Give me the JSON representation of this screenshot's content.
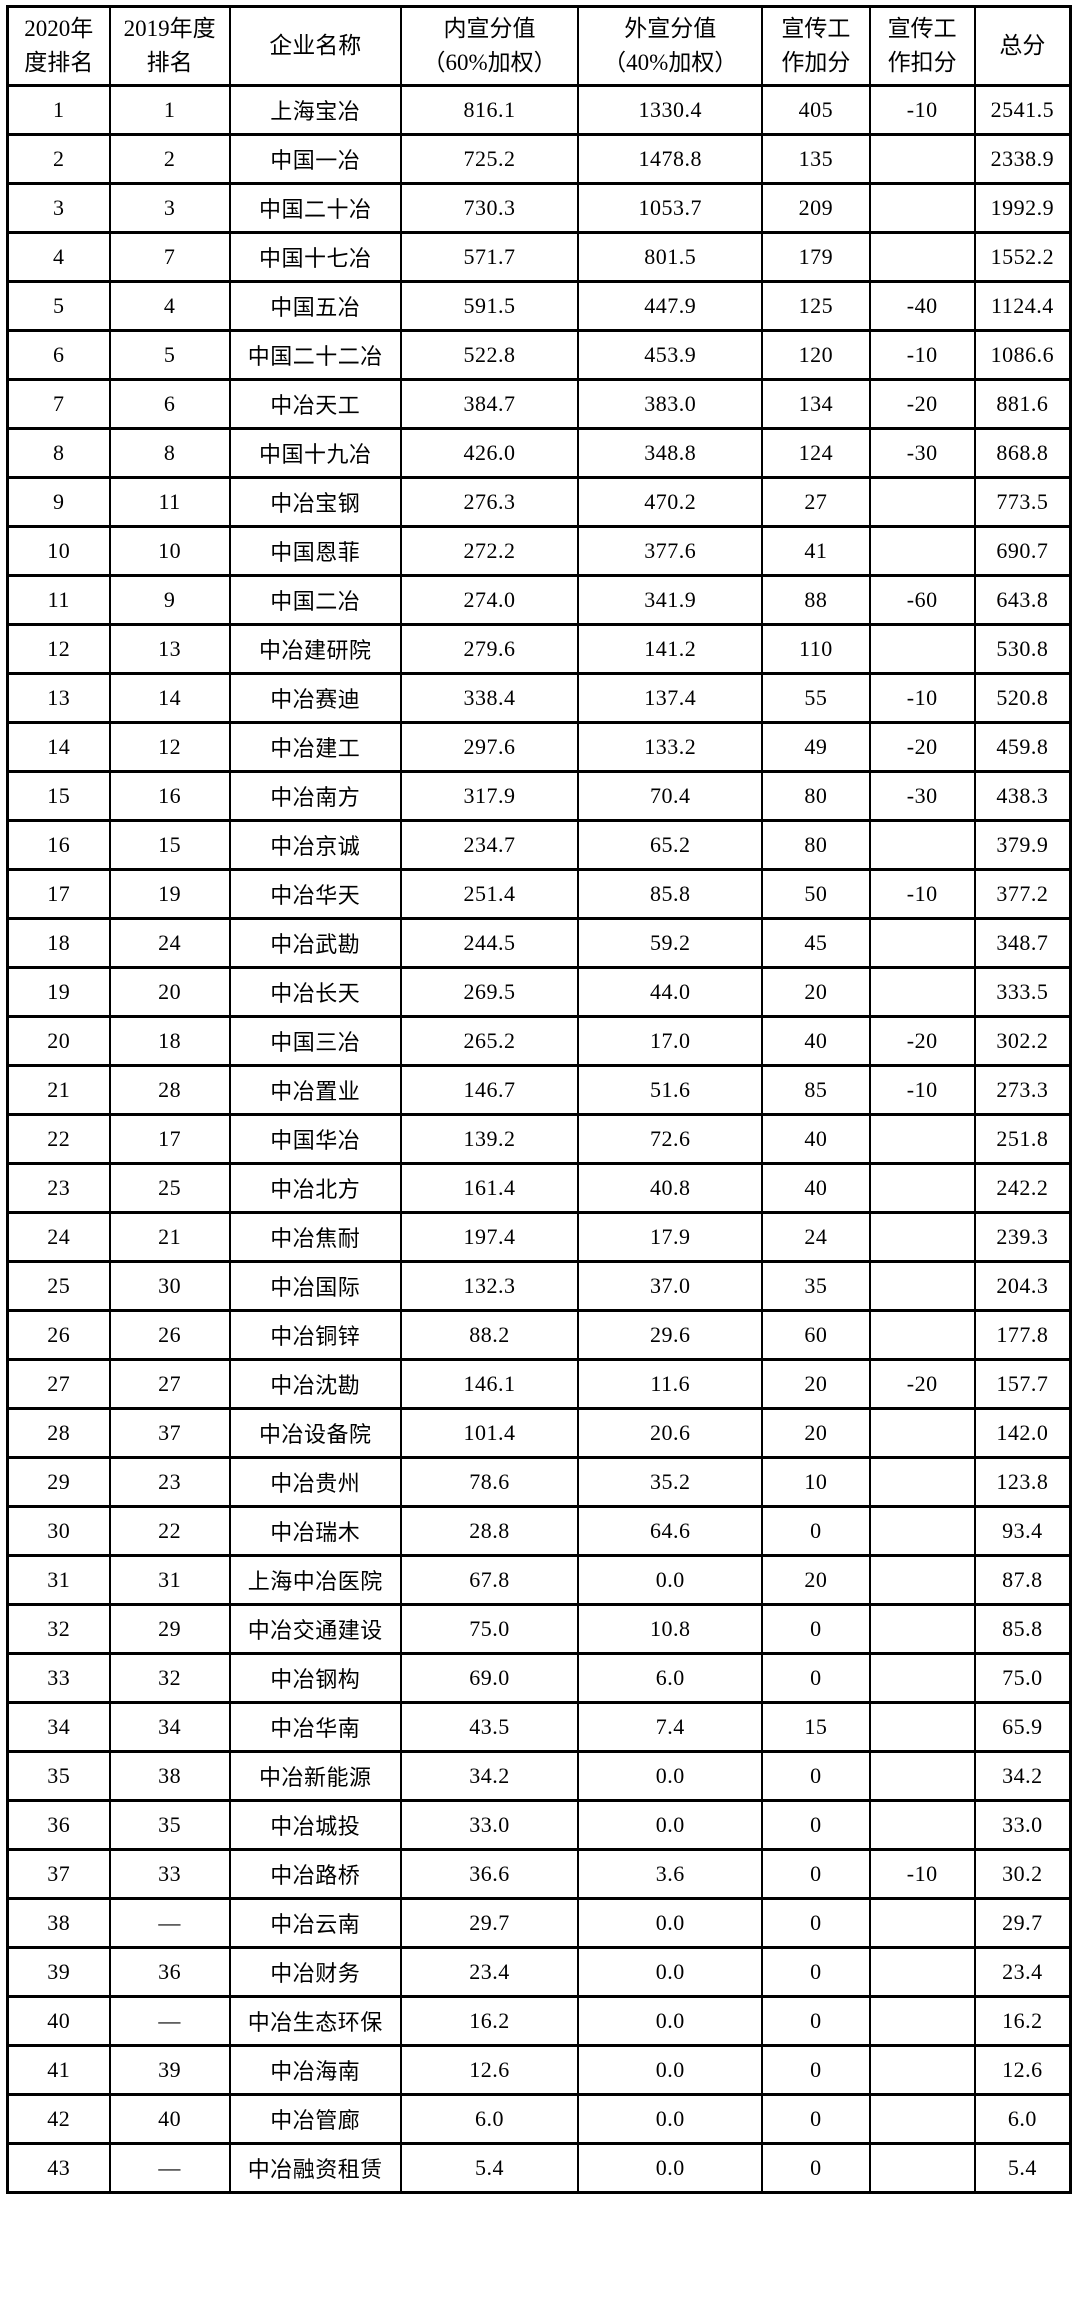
{
  "table": {
    "columns": [
      {
        "key": "rank_2020",
        "label": "2020年\n度排名"
      },
      {
        "key": "rank_2019",
        "label": "2019年度\n排名"
      },
      {
        "key": "company_name",
        "label": "企业名称"
      },
      {
        "key": "internal_score",
        "label": "内宣分值\n（60%加权）"
      },
      {
        "key": "external_score",
        "label": "外宣分值\n（40%加权）"
      },
      {
        "key": "bonus_points",
        "label": "宣传工\n作加分"
      },
      {
        "key": "deduction_points",
        "label": "宣传工\n作扣分"
      },
      {
        "key": "total_score",
        "label": "总分"
      }
    ],
    "rows": [
      [
        "1",
        "1",
        "上海宝冶",
        "816.1",
        "1330.4",
        "405",
        "-10",
        "2541.5"
      ],
      [
        "2",
        "2",
        "中国一冶",
        "725.2",
        "1478.8",
        "135",
        "",
        "2338.9"
      ],
      [
        "3",
        "3",
        "中国二十冶",
        "730.3",
        "1053.7",
        "209",
        "",
        "1992.9"
      ],
      [
        "4",
        "7",
        "中国十七冶",
        "571.7",
        "801.5",
        "179",
        "",
        "1552.2"
      ],
      [
        "5",
        "4",
        "中国五冶",
        "591.5",
        "447.9",
        "125",
        "-40",
        "1124.4"
      ],
      [
        "6",
        "5",
        "中国二十二冶",
        "522.8",
        "453.9",
        "120",
        "-10",
        "1086.6"
      ],
      [
        "7",
        "6",
        "中冶天工",
        "384.7",
        "383.0",
        "134",
        "-20",
        "881.6"
      ],
      [
        "8",
        "8",
        "中国十九冶",
        "426.0",
        "348.8",
        "124",
        "-30",
        "868.8"
      ],
      [
        "9",
        "11",
        "中冶宝钢",
        "276.3",
        "470.2",
        "27",
        "",
        "773.5"
      ],
      [
        "10",
        "10",
        "中国恩菲",
        "272.2",
        "377.6",
        "41",
        "",
        "690.7"
      ],
      [
        "11",
        "9",
        "中国二冶",
        "274.0",
        "341.9",
        "88",
        "-60",
        "643.8"
      ],
      [
        "12",
        "13",
        "中冶建研院",
        "279.6",
        "141.2",
        "110",
        "",
        "530.8"
      ],
      [
        "13",
        "14",
        "中冶赛迪",
        "338.4",
        "137.4",
        "55",
        "-10",
        "520.8"
      ],
      [
        "14",
        "12",
        "中冶建工",
        "297.6",
        "133.2",
        "49",
        "-20",
        "459.8"
      ],
      [
        "15",
        "16",
        "中冶南方",
        "317.9",
        "70.4",
        "80",
        "-30",
        "438.3"
      ],
      [
        "16",
        "15",
        "中冶京诚",
        "234.7",
        "65.2",
        "80",
        "",
        "379.9"
      ],
      [
        "17",
        "19",
        "中冶华天",
        "251.4",
        "85.8",
        "50",
        "-10",
        "377.2"
      ],
      [
        "18",
        "24",
        "中冶武勘",
        "244.5",
        "59.2",
        "45",
        "",
        "348.7"
      ],
      [
        "19",
        "20",
        "中冶长天",
        "269.5",
        "44.0",
        "20",
        "",
        "333.5"
      ],
      [
        "20",
        "18",
        "中国三冶",
        "265.2",
        "17.0",
        "40",
        "-20",
        "302.2"
      ],
      [
        "21",
        "28",
        "中冶置业",
        "146.7",
        "51.6",
        "85",
        "-10",
        "273.3"
      ],
      [
        "22",
        "17",
        "中国华冶",
        "139.2",
        "72.6",
        "40",
        "",
        "251.8"
      ],
      [
        "23",
        "25",
        "中冶北方",
        "161.4",
        "40.8",
        "40",
        "",
        "242.2"
      ],
      [
        "24",
        "21",
        "中冶焦耐",
        "197.4",
        "17.9",
        "24",
        "",
        "239.3"
      ],
      [
        "25",
        "30",
        "中冶国际",
        "132.3",
        "37.0",
        "35",
        "",
        "204.3"
      ],
      [
        "26",
        "26",
        "中冶铜锌",
        "88.2",
        "29.6",
        "60",
        "",
        "177.8"
      ],
      [
        "27",
        "27",
        "中冶沈勘",
        "146.1",
        "11.6",
        "20",
        "-20",
        "157.7"
      ],
      [
        "28",
        "37",
        "中冶设备院",
        "101.4",
        "20.6",
        "20",
        "",
        "142.0"
      ],
      [
        "29",
        "23",
        "中冶贵州",
        "78.6",
        "35.2",
        "10",
        "",
        "123.8"
      ],
      [
        "30",
        "22",
        "中冶瑞木",
        "28.8",
        "64.6",
        "0",
        "",
        "93.4"
      ],
      [
        "31",
        "31",
        "上海中冶医院",
        "67.8",
        "0.0",
        "20",
        "",
        "87.8"
      ],
      [
        "32",
        "29",
        "中冶交通建设",
        "75.0",
        "10.8",
        "0",
        "",
        "85.8"
      ],
      [
        "33",
        "32",
        "中冶钢构",
        "69.0",
        "6.0",
        "0",
        "",
        "75.0"
      ],
      [
        "34",
        "34",
        "中冶华南",
        "43.5",
        "7.4",
        "15",
        "",
        "65.9"
      ],
      [
        "35",
        "38",
        "中冶新能源",
        "34.2",
        "0.0",
        "0",
        "",
        "34.2"
      ],
      [
        "36",
        "35",
        "中冶城投",
        "33.0",
        "0.0",
        "0",
        "",
        "33.0"
      ],
      [
        "37",
        "33",
        "中冶路桥",
        "36.6",
        "3.6",
        "0",
        "-10",
        "30.2"
      ],
      [
        "38",
        "—",
        "中冶云南",
        "29.7",
        "0.0",
        "0",
        "",
        "29.7"
      ],
      [
        "39",
        "36",
        "中冶财务",
        "23.4",
        "0.0",
        "0",
        "",
        "23.4"
      ],
      [
        "40",
        "—",
        "中冶生态环保",
        "16.2",
        "0.0",
        "0",
        "",
        "16.2"
      ],
      [
        "41",
        "39",
        "中冶海南",
        "12.6",
        "0.0",
        "0",
        "",
        "12.6"
      ],
      [
        "42",
        "40",
        "中冶管廊",
        "6.0",
        "0.0",
        "0",
        "",
        "6.0"
      ],
      [
        "43",
        "—",
        "中冶融资租赁",
        "5.4",
        "0.0",
        "0",
        "",
        "5.4"
      ]
    ],
    "colors": {
      "border": "#000000",
      "background": "#ffffff",
      "text": "#000000"
    }
  }
}
